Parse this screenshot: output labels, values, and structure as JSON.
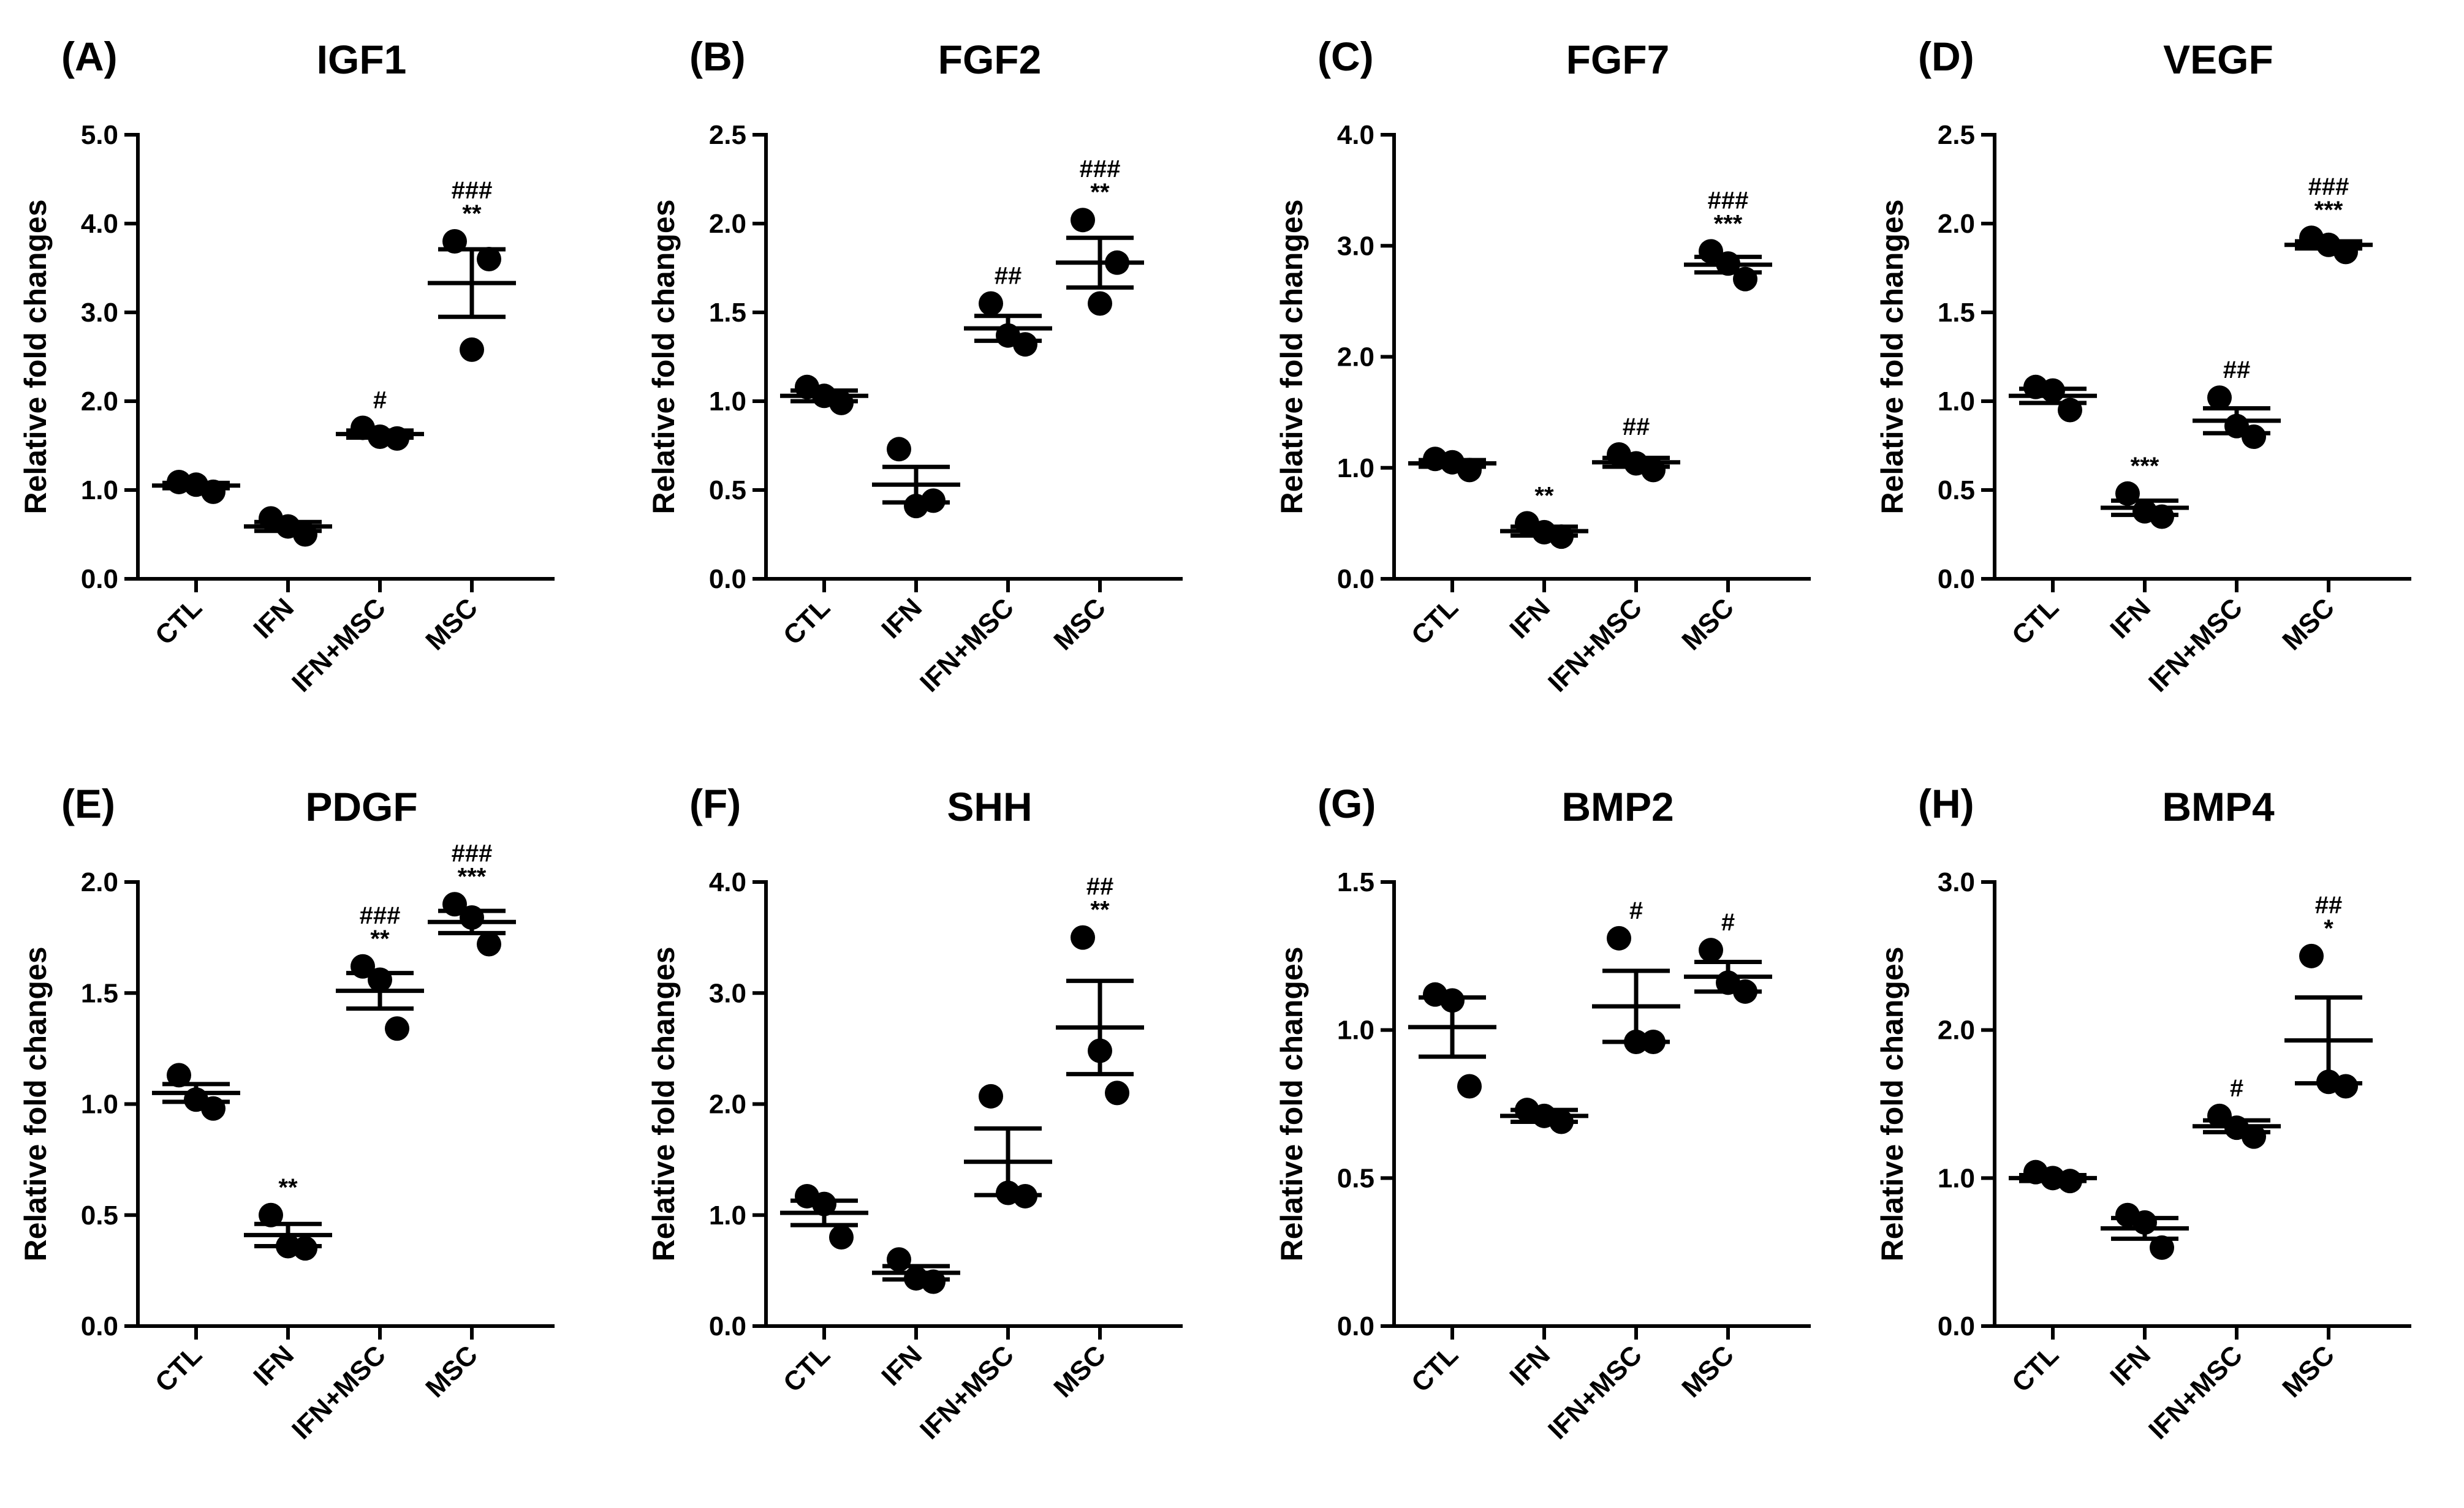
{
  "figure": {
    "panels": [
      {
        "letter": "(A)",
        "title": "IGF1"
      },
      {
        "letter": "(B)",
        "title": "FGF2"
      },
      {
        "letter": "(C)",
        "title": "FGF7"
      },
      {
        "letter": "(D)",
        "title": "VEGF"
      },
      {
        "letter": "(E)",
        "title": "PDGF"
      },
      {
        "letter": "(F)",
        "title": "SHH"
      },
      {
        "letter": "(G)",
        "title": "BMP2"
      },
      {
        "letter": "(H)",
        "title": "BMP4"
      }
    ]
  },
  "chart_data": [
    {
      "type": "scatter",
      "panel_label": "(A)",
      "title": "IGF1",
      "ylabel": "Relative fold changes",
      "categories": [
        "CTL",
        "IFN",
        "IFN+MSC",
        "MSC"
      ],
      "ylim": [
        0,
        5
      ],
      "yticks": [
        0,
        1,
        2,
        3,
        4,
        5
      ],
      "ytick_labels": [
        "0.0",
        "1.0",
        "2.0",
        "3.0",
        "4.0",
        "5.0"
      ],
      "points": [
        [
          1.09,
          0.98,
          1.06
        ],
        [
          0.68,
          0.5,
          0.59
        ],
        [
          1.7,
          1.58,
          1.6
        ],
        [
          3.8,
          3.6,
          2.58
        ]
      ],
      "mean": [
        1.05,
        0.59,
        1.63,
        3.33
      ],
      "sem": [
        0.03,
        0.05,
        0.04,
        0.38
      ],
      "significance": [
        "",
        "",
        "#",
        "###\n**"
      ]
    },
    {
      "type": "scatter",
      "panel_label": "(B)",
      "title": "FGF2",
      "ylabel": "Relative fold changes",
      "categories": [
        "CTL",
        "IFN",
        "IFN+MSC",
        "MSC"
      ],
      "ylim": [
        0,
        2.5
      ],
      "yticks": [
        0,
        0.5,
        1,
        1.5,
        2,
        2.5
      ],
      "ytick_labels": [
        "0.0",
        "0.5",
        "1.0",
        "1.5",
        "2.0",
        "2.5"
      ],
      "points": [
        [
          1.08,
          0.99,
          1.03
        ],
        [
          0.73,
          0.44,
          0.41
        ],
        [
          1.55,
          1.32,
          1.37
        ],
        [
          2.02,
          1.78,
          1.55
        ]
      ],
      "mean": [
        1.03,
        0.53,
        1.41,
        1.78
      ],
      "sem": [
        0.03,
        0.1,
        0.07,
        0.14
      ],
      "significance": [
        "",
        "",
        "##",
        "###\n**"
      ]
    },
    {
      "type": "scatter",
      "panel_label": "(C)",
      "title": "FGF7",
      "ylabel": "Relative fold changes",
      "categories": [
        "CTL",
        "IFN",
        "IFN+MSC",
        "MSC"
      ],
      "ylim": [
        0,
        4
      ],
      "yticks": [
        0,
        1,
        2,
        3,
        4
      ],
      "ytick_labels": [
        "0.0",
        "1.0",
        "2.0",
        "3.0",
        "4.0"
      ],
      "points": [
        [
          1.08,
          0.98,
          1.05
        ],
        [
          0.5,
          0.38,
          0.42
        ],
        [
          1.12,
          0.98,
          1.04
        ],
        [
          2.95,
          2.7,
          2.84
        ]
      ],
      "mean": [
        1.04,
        0.43,
        1.05,
        2.83
      ],
      "sem": [
        0.03,
        0.04,
        0.04,
        0.07
      ],
      "significance": [
        "",
        "**",
        "##",
        "###\n***"
      ]
    },
    {
      "type": "scatter",
      "panel_label": "(D)",
      "title": "VEGF",
      "ylabel": "Relative fold changes",
      "categories": [
        "CTL",
        "IFN",
        "IFN+MSC",
        "MSC"
      ],
      "ylim": [
        0,
        2.5
      ],
      "yticks": [
        0,
        0.5,
        1,
        1.5,
        2,
        2.5
      ],
      "ytick_labels": [
        "0.0",
        "0.5",
        "1.0",
        "1.5",
        "2.0",
        "2.5"
      ],
      "points": [
        [
          1.08,
          0.95,
          1.06
        ],
        [
          0.48,
          0.35,
          0.38
        ],
        [
          1.02,
          0.8,
          0.86
        ],
        [
          1.92,
          1.84,
          1.88
        ]
      ],
      "mean": [
        1.03,
        0.4,
        0.89,
        1.88
      ],
      "sem": [
        0.04,
        0.04,
        0.07,
        0.02
      ],
      "significance": [
        "",
        "***",
        "##",
        "###\n***"
      ]
    },
    {
      "type": "scatter",
      "panel_label": "(E)",
      "title": "PDGF",
      "ylabel": "Relative fold changes",
      "categories": [
        "CTL",
        "IFN",
        "IFN+MSC",
        "MSC"
      ],
      "ylim": [
        0,
        2
      ],
      "yticks": [
        0,
        0.5,
        1,
        1.5,
        2
      ],
      "ytick_labels": [
        "0.0",
        "0.5",
        "1.0",
        "1.5",
        "2.0"
      ],
      "points": [
        [
          1.13,
          0.98,
          1.02
        ],
        [
          0.5,
          0.35,
          0.36
        ],
        [
          1.62,
          1.34,
          1.56
        ],
        [
          1.9,
          1.72,
          1.84
        ]
      ],
      "mean": [
        1.05,
        0.41,
        1.51,
        1.82
      ],
      "sem": [
        0.04,
        0.05,
        0.08,
        0.05
      ],
      "significance": [
        "",
        "**",
        "###\n**",
        "###\n***"
      ]
    },
    {
      "type": "scatter",
      "panel_label": "(F)",
      "title": "SHH",
      "ylabel": "Relative fold changes",
      "categories": [
        "CTL",
        "IFN",
        "IFN+MSC",
        "MSC"
      ],
      "ylim": [
        0,
        4
      ],
      "yticks": [
        0,
        1,
        2,
        3,
        4
      ],
      "ytick_labels": [
        "0.0",
        "1.0",
        "2.0",
        "3.0",
        "4.0"
      ],
      "points": [
        [
          1.17,
          0.8,
          1.1
        ],
        [
          0.6,
          0.4,
          0.43
        ],
        [
          2.07,
          1.17,
          1.2
        ],
        [
          3.5,
          2.1,
          2.48
        ]
      ],
      "mean": [
        1.02,
        0.48,
        1.48,
        2.69
      ],
      "sem": [
        0.11,
        0.06,
        0.3,
        0.42
      ],
      "significance": [
        "",
        "",
        "",
        "##\n**"
      ]
    },
    {
      "type": "scatter",
      "panel_label": "(G)",
      "title": "BMP2",
      "ylabel": "Relative fold changes",
      "categories": [
        "CTL",
        "IFN",
        "IFN+MSC",
        "MSC"
      ],
      "ylim": [
        0,
        1.5
      ],
      "yticks": [
        0,
        0.5,
        1,
        1.5
      ],
      "ytick_labels": [
        "0.0",
        "0.5",
        "1.0",
        "1.5"
      ],
      "points": [
        [
          1.12,
          0.81,
          1.1
        ],
        [
          0.73,
          0.69,
          0.71
        ],
        [
          1.31,
          0.96,
          0.96
        ],
        [
          1.27,
          1.13,
          1.16
        ]
      ],
      "mean": [
        1.01,
        0.71,
        1.08,
        1.18
      ],
      "sem": [
        0.1,
        0.02,
        0.12,
        0.05
      ],
      "significance": [
        "",
        "",
        "#",
        "#"
      ]
    },
    {
      "type": "scatter",
      "panel_label": "(H)",
      "title": "BMP4",
      "ylabel": "Relative fold changes",
      "categories": [
        "CTL",
        "IFN",
        "IFN+MSC",
        "MSC"
      ],
      "ylim": [
        0,
        3
      ],
      "yticks": [
        0,
        1,
        2,
        3
      ],
      "ytick_labels": [
        "0.0",
        "1.0",
        "2.0",
        "3.0"
      ],
      "points": [
        [
          1.04,
          0.98,
          1.0
        ],
        [
          0.75,
          0.53,
          0.7
        ],
        [
          1.42,
          1.28,
          1.34
        ],
        [
          2.5,
          1.62,
          1.65
        ]
      ],
      "mean": [
        1.0,
        0.66,
        1.35,
        1.93
      ],
      "sem": [
        0.02,
        0.07,
        0.04,
        0.29
      ],
      "significance": [
        "",
        "",
        "#",
        "##\n*"
      ]
    }
  ]
}
